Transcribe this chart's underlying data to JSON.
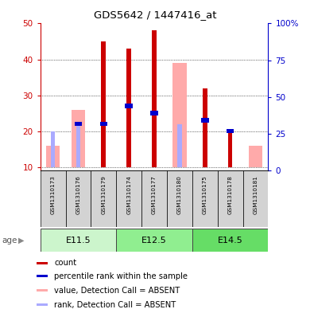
{
  "title": "GDS5642 / 1447416_at",
  "samples": [
    "GSM1310173",
    "GSM1310176",
    "GSM1310179",
    "GSM1310174",
    "GSM1310177",
    "GSM1310180",
    "GSM1310175",
    "GSM1310178",
    "GSM1310181"
  ],
  "age_groups": [
    {
      "label": "E11.5",
      "start": 0,
      "end": 3
    },
    {
      "label": "E12.5",
      "start": 3,
      "end": 6
    },
    {
      "label": "E14.5",
      "start": 6,
      "end": 9
    }
  ],
  "count_values": [
    null,
    null,
    45,
    43,
    48,
    null,
    32,
    20,
    null
  ],
  "percentile_values": [
    null,
    22,
    22,
    27,
    25,
    null,
    23,
    20,
    null
  ],
  "value_absent": [
    16,
    26,
    null,
    null,
    null,
    39,
    null,
    null,
    16
  ],
  "rank_absent": [
    20,
    22,
    null,
    null,
    null,
    22,
    null,
    null,
    null
  ],
  "ylim_left": [
    9,
    50
  ],
  "ylim_right": [
    0,
    100
  ],
  "yticks_left": [
    10,
    20,
    30,
    40,
    50
  ],
  "yticks_right": [
    0,
    25,
    50,
    75,
    100
  ],
  "ytick_labels_right": [
    "0",
    "25",
    "50",
    "75",
    "100%"
  ],
  "color_count": "#cc0000",
  "color_percentile": "#0000cc",
  "color_value_absent": "#ffaaaa",
  "color_rank_absent": "#aaaaff",
  "legend_items": [
    {
      "color": "#cc0000",
      "label": "count"
    },
    {
      "color": "#0000cc",
      "label": "percentile rank within the sample"
    },
    {
      "color": "#ffaaaa",
      "label": "value, Detection Call = ABSENT"
    },
    {
      "color": "#aaaaff",
      "label": "rank, Detection Call = ABSENT"
    }
  ],
  "age_colors": [
    "#b0f0b0",
    "#90ee90",
    "#55dd55"
  ],
  "sample_box_color": "#d3d3d3",
  "grid_color": "black",
  "spine_bottom_color": "black"
}
